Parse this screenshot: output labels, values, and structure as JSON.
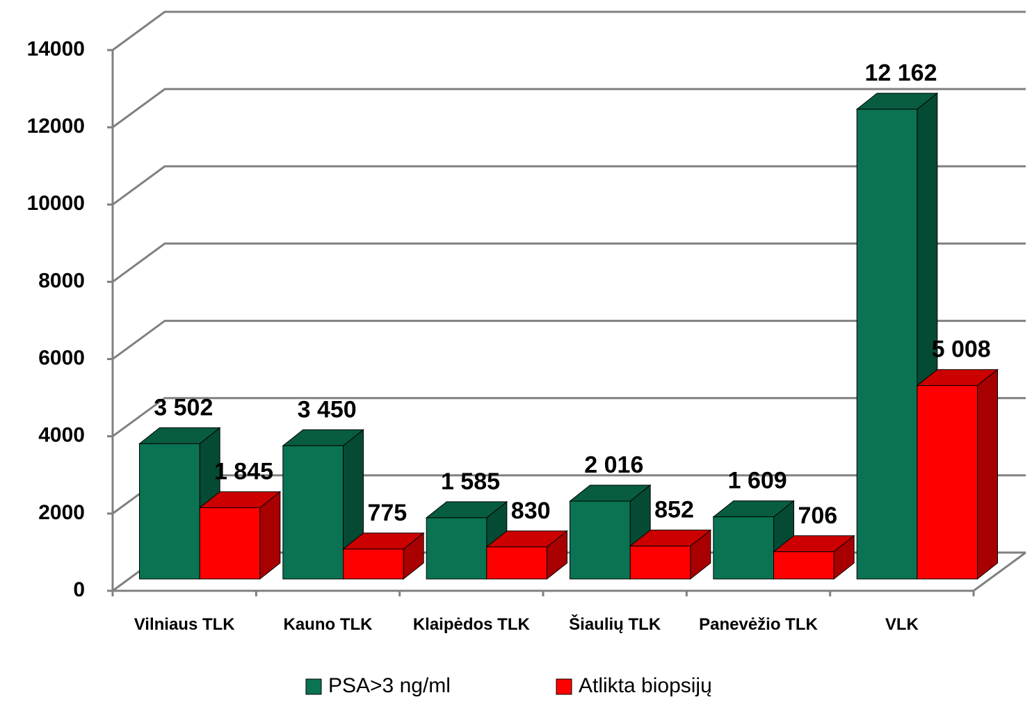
{
  "chart_data": {
    "type": "bar3d",
    "categories": [
      "Vilniaus TLK",
      "Kauno TLK",
      "Klaipėdos TLK",
      "Šiaulių TLK",
      "Panevėžio TLK",
      "VLK"
    ],
    "series": [
      {
        "name": "PSA>3 ng/ml",
        "color": "#0a7353",
        "values": [
          3502,
          3450,
          1585,
          2016,
          1609,
          12162
        ],
        "value_labels": [
          "3 502",
          "3 450",
          "1 585",
          "2 016",
          "1 609",
          "12 162"
        ]
      },
      {
        "name": "Atlikta biopsijų",
        "color": "#ff0000",
        "values": [
          1845,
          775,
          830,
          852,
          706,
          5008
        ],
        "value_labels": [
          "1 845",
          "775",
          "830",
          "852",
          "706",
          "5 008"
        ]
      }
    ],
    "ylim": [
      0,
      14000
    ],
    "yticks": [
      0,
      2000,
      4000,
      6000,
      8000,
      10000,
      12000,
      14000
    ],
    "grid": true,
    "legend": "bottom"
  }
}
